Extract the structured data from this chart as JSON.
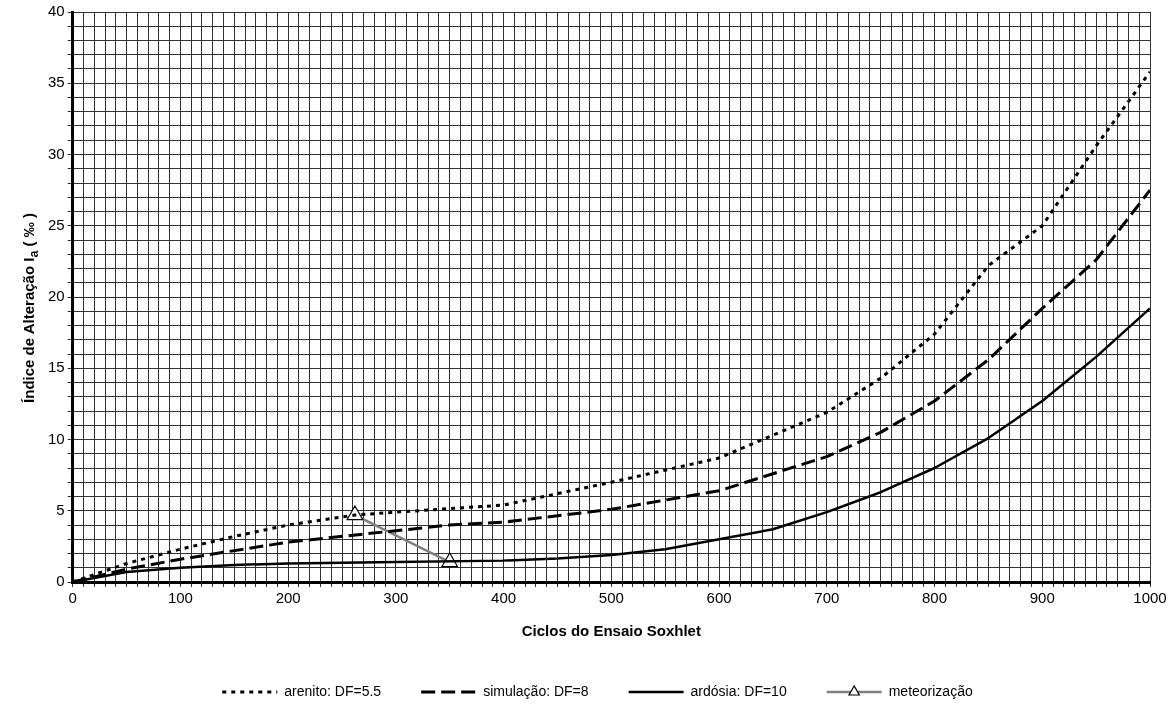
{
  "chart_data": {
    "type": "line",
    "xlabel": "Ciclos do Ensaio Soxhlet",
    "ylabel": "Índice de Alteração I$_{a}$ ( ‰ )",
    "xlim": [
      0,
      1000
    ],
    "ylim": [
      0,
      40
    ],
    "xticks": [
      0,
      {
        "value": 10,
        "label": null
      },
      {
        "value": 20,
        "label": null
      },
      {
        "value": 30,
        "label": null
      },
      {
        "value": 40,
        "label": null
      },
      {
        "value": 50,
        "label": null
      },
      {
        "value": 60,
        "label": null
      },
      {
        "value": 70,
        "label": null
      },
      {
        "value": 80,
        "label": null
      },
      {
        "value": 90,
        "label": null
      },
      100,
      {
        "value": 110,
        "label": null
      },
      {
        "value": 120,
        "label": null
      },
      {
        "value": 130,
        "label": null
      },
      {
        "value": 140,
        "label": null
      },
      {
        "value": 150,
        "label": null
      },
      {
        "value": 160,
        "label": null
      },
      {
        "value": 170,
        "label": null
      },
      {
        "value": 180,
        "label": null
      },
      {
        "value": 190,
        "label": null
      },
      200,
      {
        "value": 210,
        "label": null
      },
      {
        "value": 220,
        "label": null
      },
      {
        "value": 230,
        "label": null
      },
      {
        "value": 240,
        "label": null
      },
      {
        "value": 250,
        "label": null
      },
      {
        "value": 260,
        "label": null
      },
      {
        "value": 270,
        "label": null
      },
      {
        "value": 280,
        "label": null
      },
      {
        "value": 290,
        "label": null
      },
      300,
      {
        "value": 310,
        "label": null
      },
      {
        "value": 320,
        "label": null
      },
      {
        "value": 330,
        "label": null
      },
      {
        "value": 340,
        "label": null
      },
      {
        "value": 350,
        "label": null
      },
      {
        "value": 360,
        "label": null
      },
      {
        "value": 370,
        "label": null
      },
      {
        "value": 380,
        "label": null
      },
      {
        "value": 390,
        "label": null
      },
      400,
      {
        "value": 410,
        "label": null
      },
      {
        "value": 420,
        "label": null
      },
      {
        "value": 430,
        "label": null
      },
      {
        "value": 440,
        "label": null
      },
      {
        "value": 450,
        "label": null
      },
      {
        "value": 460,
        "label": null
      },
      {
        "value": 470,
        "label": null
      },
      {
        "value": 480,
        "label": null
      },
      {
        "value": 490,
        "label": null
      },
      500,
      {
        "value": 510,
        "label": null
      },
      {
        "value": 520,
        "label": null
      },
      {
        "value": 530,
        "label": null
      },
      {
        "value": 540,
        "label": null
      },
      {
        "value": 550,
        "label": null
      },
      {
        "value": 560,
        "label": null
      },
      {
        "value": 570,
        "label": null
      },
      {
        "value": 580,
        "label": null
      },
      {
        "value": 590,
        "label": null
      },
      600,
      {
        "value": 610,
        "label": null
      },
      {
        "value": 620,
        "label": null
      },
      {
        "value": 630,
        "label": null
      },
      {
        "value": 640,
        "label": null
      },
      {
        "value": 650,
        "label": null
      },
      {
        "value": 660,
        "label": null
      },
      {
        "value": 670,
        "label": null
      },
      {
        "value": 680,
        "label": null
      },
      {
        "value": 690,
        "label": null
      },
      700,
      {
        "value": 710,
        "label": null
      },
      {
        "value": 720,
        "label": null
      },
      {
        "value": 730,
        "label": null
      },
      {
        "value": 740,
        "label": null
      },
      {
        "value": 750,
        "label": null
      },
      {
        "value": 760,
        "label": null
      },
      {
        "value": 770,
        "label": null
      },
      {
        "value": 780,
        "label": null
      },
      {
        "value": 790,
        "label": null
      },
      800,
      {
        "value": 810,
        "label": null
      },
      {
        "value": 820,
        "label": null
      },
      {
        "value": 830,
        "label": null
      },
      {
        "value": 840,
        "label": null
      },
      {
        "value": 850,
        "label": null
      },
      {
        "value": 860,
        "label": null
      },
      {
        "value": 870,
        "label": null
      },
      {
        "value": 880,
        "label": null
      },
      {
        "value": 890,
        "label": null
      },
      900,
      {
        "value": 910,
        "label": null
      },
      {
        "value": 920,
        "label": null
      },
      {
        "value": 930,
        "label": null
      },
      {
        "value": 940,
        "label": null
      },
      {
        "value": 950,
        "label": null
      },
      {
        "value": 960,
        "label": null
      },
      {
        "value": 970,
        "label": null
      },
      {
        "value": 980,
        "label": null
      },
      {
        "value": 990,
        "label": null
      },
      1000
    ],
    "yticks": [
      0,
      {
        "value": 1,
        "label": null
      },
      {
        "value": 2,
        "label": null
      },
      {
        "value": 3,
        "label": null
      },
      {
        "value": 4,
        "label": null
      },
      5,
      {
        "value": 6,
        "label": null
      },
      {
        "value": 7,
        "label": null
      },
      {
        "value": 8,
        "label": null
      },
      {
        "value": 9,
        "label": null
      },
      10,
      {
        "value": 11,
        "label": null
      },
      {
        "value": 12,
        "label": null
      },
      {
        "value": 13,
        "label": null
      },
      {
        "value": 14,
        "label": null
      },
      15,
      {
        "value": 16,
        "label": null
      },
      {
        "value": 17,
        "label": null
      },
      {
        "value": 18,
        "label": null
      },
      {
        "value": 19,
        "label": null
      },
      20,
      {
        "value": 21,
        "label": null
      },
      {
        "value": 22,
        "label": null
      },
      {
        "value": 23,
        "label": null
      },
      {
        "value": 24,
        "label": null
      },
      25,
      {
        "value": 26,
        "label": null
      },
      {
        "value": 27,
        "label": null
      },
      {
        "value": 28,
        "label": null
      },
      {
        "value": 29,
        "label": null
      },
      30,
      {
        "value": 31,
        "label": null
      },
      {
        "value": 32,
        "label": null
      },
      {
        "value": 33,
        "label": null
      },
      {
        "value": 34,
        "label": null
      },
      35,
      {
        "value": 36,
        "label": null
      },
      {
        "value": 37,
        "label": null
      },
      {
        "value": 38,
        "label": null
      },
      {
        "value": 39,
        "label": null
      },
      40
    ],
    "grid": true,
    "legend": "bottom",
    "series": [
      {
        "name": "arenito: DF=5.5",
        "color": "#000000",
        "line_style": "dotted",
        "marker": "none",
        "x": [
          0,
          50,
          100,
          150,
          200,
          262,
          300,
          400,
          500,
          600,
          700,
          750,
          800,
          850,
          900,
          950,
          1000
        ],
        "values": [
          0,
          1.3,
          2.3,
          3.2,
          4.0,
          4.7,
          4.9,
          5.4,
          7.0,
          8.7,
          11.9,
          14.3,
          17.4,
          22.2,
          25.0,
          30.6,
          35.8
        ]
      },
      {
        "name": "simulação: DF=8",
        "color": "#000000",
        "line_style": "dashed",
        "marker": "none",
        "x": [
          0,
          50,
          100,
          200,
          300,
          350,
          400,
          500,
          600,
          700,
          750,
          800,
          850,
          900,
          950,
          1000
        ],
        "values": [
          0,
          0.9,
          1.6,
          2.8,
          3.6,
          4.0,
          4.2,
          5.1,
          6.4,
          8.8,
          10.5,
          12.7,
          15.6,
          19.2,
          22.6,
          27.5
        ]
      },
      {
        "name": "ardósia: DF=10",
        "color": "#000000",
        "line_style": "solid",
        "marker": "none",
        "x": [
          0,
          50,
          100,
          150,
          200,
          300,
          400,
          450,
          500,
          550,
          600,
          650,
          700,
          750,
          800,
          850,
          900,
          950,
          1000
        ],
        "values": [
          0,
          0.7,
          1.0,
          1.2,
          1.3,
          1.4,
          1.5,
          1.65,
          1.9,
          2.3,
          3.0,
          3.7,
          4.9,
          6.3,
          8.0,
          10.1,
          12.7,
          15.8,
          19.2
        ]
      },
      {
        "name": "meteorização",
        "color": "#808080",
        "line_style": "solid",
        "marker": "triangle",
        "x": [
          262,
          350
        ],
        "values": [
          4.7,
          1.4
        ]
      }
    ]
  }
}
